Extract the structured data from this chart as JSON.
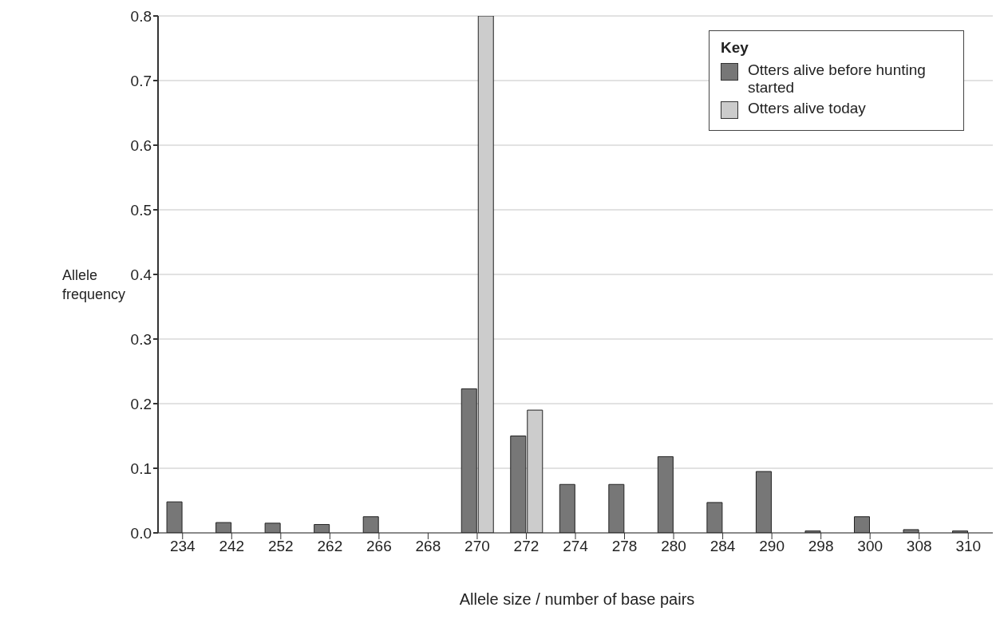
{
  "chart_data": {
    "type": "bar",
    "xlabel": "Allele size / number of base pairs",
    "ylabel": "Allele frequency",
    "legend_title": "Key",
    "categories": [
      "234",
      "242",
      "252",
      "262",
      "266",
      "268",
      "270",
      "272",
      "274",
      "278",
      "280",
      "284",
      "290",
      "298",
      "300",
      "308",
      "310"
    ],
    "series": [
      {
        "name": "Otters alive before hunting started",
        "color": "#777777",
        "values": [
          0.048,
          0.016,
          0.015,
          0.013,
          0.025,
          0,
          0.223,
          0.15,
          0.075,
          0.075,
          0.118,
          0.047,
          0.095,
          0.003,
          0.025,
          0.005,
          0.003
        ]
      },
      {
        "name": "Otters alive today",
        "color": "#cccccc",
        "values": [
          null,
          null,
          null,
          null,
          null,
          null,
          0.8,
          0.19,
          null,
          null,
          null,
          null,
          null,
          null,
          null,
          null,
          null
        ]
      }
    ],
    "ylim": [
      0,
      0.8
    ],
    "yticks": [
      {
        "value": 0,
        "label": "0.0"
      },
      0.1,
      0.2,
      0.3,
      0.4,
      0.5,
      0.6,
      0.7,
      0.8
    ],
    "grid": "y",
    "legend": "top right"
  }
}
